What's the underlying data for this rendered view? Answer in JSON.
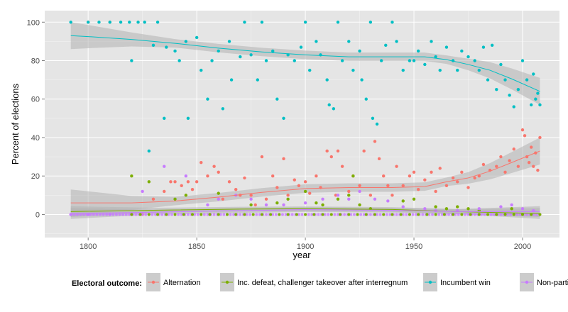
{
  "chart_data": {
    "type": "scatter",
    "title": "",
    "xlabel": "year",
    "ylabel": "Percent of elections",
    "xlim": [
      1780,
      2017
    ],
    "ylim": [
      -12,
      106
    ],
    "x_ticks": [
      1800,
      1850,
      1900,
      1950,
      2000
    ],
    "y_ticks": [
      0,
      20,
      40,
      60,
      80,
      100
    ],
    "grid": true,
    "legend_title": "Electoral outcome:",
    "legend_position": "bottom",
    "colors": {
      "panel": "#e5e5e5",
      "grid": "#ffffff",
      "band": "#b3b3b3",
      "Alternation": "#f8766d",
      "Inc. defeat, challenger takeover after interregnum": "#7cae00",
      "Incumbent win": "#00bfc4",
      "Non-partisan": "#c77cff"
    },
    "series": [
      {
        "name": "Alternation",
        "points": [
          [
            1800,
            100
          ],
          [
            1810,
            100
          ],
          [
            1820,
            0
          ],
          [
            1825,
            0
          ],
          [
            1830,
            8
          ],
          [
            1835,
            12
          ],
          [
            1838,
            17
          ],
          [
            1840,
            17
          ],
          [
            1843,
            15
          ],
          [
            1846,
            17
          ],
          [
            1848,
            13
          ],
          [
            1850,
            17
          ],
          [
            1852,
            27
          ],
          [
            1855,
            20
          ],
          [
            1858,
            25
          ],
          [
            1860,
            22
          ],
          [
            1862,
            8
          ],
          [
            1865,
            17
          ],
          [
            1868,
            13
          ],
          [
            1870,
            10
          ],
          [
            1872,
            19
          ],
          [
            1875,
            10
          ],
          [
            1877,
            5
          ],
          [
            1880,
            30
          ],
          [
            1882,
            8
          ],
          [
            1885,
            20
          ],
          [
            1887,
            14
          ],
          [
            1890,
            29
          ],
          [
            1892,
            10
          ],
          [
            1895,
            18
          ],
          [
            1897,
            15
          ],
          [
            1900,
            17
          ],
          [
            1902,
            11
          ],
          [
            1905,
            20
          ],
          [
            1907,
            14
          ],
          [
            1910,
            33
          ],
          [
            1912,
            30
          ],
          [
            1914,
            10
          ],
          [
            1915,
            33
          ],
          [
            1917,
            25
          ],
          [
            1920,
            12
          ],
          [
            1922,
            20
          ],
          [
            1925,
            15
          ],
          [
            1927,
            33
          ],
          [
            1930,
            10
          ],
          [
            1932,
            38
          ],
          [
            1934,
            29
          ],
          [
            1936,
            20
          ],
          [
            1938,
            15
          ],
          [
            1940,
            10
          ],
          [
            1942,
            25
          ],
          [
            1945,
            15
          ],
          [
            1948,
            20
          ],
          [
            1950,
            22
          ],
          [
            1952,
            13
          ],
          [
            1955,
            18
          ],
          [
            1958,
            22
          ],
          [
            1960,
            12
          ],
          [
            1962,
            24
          ],
          [
            1965,
            15
          ],
          [
            1968,
            19
          ],
          [
            1970,
            17
          ],
          [
            1972,
            22
          ],
          [
            1975,
            14
          ],
          [
            1978,
            19
          ],
          [
            1980,
            20
          ],
          [
            1982,
            26
          ],
          [
            1985,
            23
          ],
          [
            1988,
            25
          ],
          [
            1990,
            30
          ],
          [
            1992,
            22
          ],
          [
            1994,
            28
          ],
          [
            1996,
            34
          ],
          [
            1998,
            25
          ],
          [
            2000,
            44
          ],
          [
            2001,
            41
          ],
          [
            2002,
            30
          ],
          [
            2003,
            27
          ],
          [
            2004,
            35
          ],
          [
            2005,
            25
          ],
          [
            2006,
            32
          ],
          [
            2007,
            23
          ],
          [
            2008,
            40
          ]
        ],
        "trend": [
          [
            1792,
            6
          ],
          [
            1800,
            6
          ],
          [
            1820,
            6
          ],
          [
            1840,
            7
          ],
          [
            1860,
            9
          ],
          [
            1880,
            11.5
          ],
          [
            1900,
            13.5
          ],
          [
            1920,
            14
          ],
          [
            1940,
            14
          ],
          [
            1955,
            14.5
          ],
          [
            1965,
            17
          ],
          [
            1975,
            19
          ],
          [
            1985,
            22.5
          ],
          [
            1995,
            27
          ],
          [
            2008,
            33
          ]
        ]
      },
      {
        "name": "Inc. defeat, challenger takeover after interregnum",
        "points": [
          [
            1820,
            20
          ],
          [
            1828,
            17
          ],
          [
            1840,
            8
          ],
          [
            1845,
            10
          ],
          [
            1860,
            11
          ],
          [
            1875,
            5
          ],
          [
            1887,
            6
          ],
          [
            1892,
            8
          ],
          [
            1900,
            12
          ],
          [
            1905,
            6
          ],
          [
            1908,
            5
          ],
          [
            1915,
            8
          ],
          [
            1920,
            10
          ],
          [
            1922,
            20
          ],
          [
            1925,
            5
          ],
          [
            1930,
            3
          ],
          [
            1945,
            7
          ],
          [
            1950,
            8
          ],
          [
            1960,
            4
          ],
          [
            1965,
            3
          ],
          [
            1970,
            4
          ],
          [
            1975,
            3
          ],
          [
            1980,
            2
          ],
          [
            1995,
            3
          ]
        ],
        "trend": [
          [
            1792,
            1.5
          ],
          [
            1830,
            2.2
          ],
          [
            1870,
            2.8
          ],
          [
            1900,
            3
          ],
          [
            1940,
            2.6
          ],
          [
            1970,
            1.5
          ],
          [
            2008,
            0.5
          ]
        ]
      },
      {
        "name": "Incumbent win",
        "points": [
          [
            1792,
            100
          ],
          [
            1800,
            100
          ],
          [
            1805,
            100
          ],
          [
            1810,
            100
          ],
          [
            1815,
            100
          ],
          [
            1819,
            100
          ],
          [
            1820,
            80
          ],
          [
            1823,
            100
          ],
          [
            1826,
            100
          ],
          [
            1828,
            33
          ],
          [
            1830,
            88
          ],
          [
            1832,
            100
          ],
          [
            1835,
            50
          ],
          [
            1836,
            87
          ],
          [
            1840,
            85
          ],
          [
            1842,
            80
          ],
          [
            1845,
            90
          ],
          [
            1846,
            50
          ],
          [
            1850,
            92
          ],
          [
            1852,
            75
          ],
          [
            1855,
            60
          ],
          [
            1857,
            80
          ],
          [
            1860,
            85
          ],
          [
            1862,
            55
          ],
          [
            1865,
            90
          ],
          [
            1866,
            70
          ],
          [
            1870,
            82
          ],
          [
            1872,
            100
          ],
          [
            1875,
            83
          ],
          [
            1878,
            70
          ],
          [
            1880,
            100
          ],
          [
            1882,
            80
          ],
          [
            1885,
            85
          ],
          [
            1887,
            60
          ],
          [
            1890,
            50
          ],
          [
            1892,
            83
          ],
          [
            1895,
            80
          ],
          [
            1898,
            87
          ],
          [
            1900,
            100
          ],
          [
            1902,
            75
          ],
          [
            1905,
            90
          ],
          [
            1907,
            83
          ],
          [
            1910,
            70
          ],
          [
            1911,
            57
          ],
          [
            1913,
            55
          ],
          [
            1915,
            100
          ],
          [
            1917,
            80
          ],
          [
            1920,
            90
          ],
          [
            1922,
            75
          ],
          [
            1925,
            85
          ],
          [
            1926,
            70
          ],
          [
            1928,
            60
          ],
          [
            1930,
            100
          ],
          [
            1931,
            50
          ],
          [
            1933,
            47
          ],
          [
            1935,
            80
          ],
          [
            1937,
            88
          ],
          [
            1940,
            100
          ],
          [
            1942,
            90
          ],
          [
            1945,
            75
          ],
          [
            1948,
            80
          ],
          [
            1950,
            80
          ],
          [
            1952,
            85
          ],
          [
            1955,
            78
          ],
          [
            1958,
            90
          ],
          [
            1960,
            82
          ],
          [
            1962,
            75
          ],
          [
            1965,
            87
          ],
          [
            1968,
            80
          ],
          [
            1970,
            75
          ],
          [
            1972,
            85
          ],
          [
            1975,
            82
          ],
          [
            1978,
            80
          ],
          [
            1980,
            75
          ],
          [
            1982,
            87
          ],
          [
            1984,
            70
          ],
          [
            1986,
            88
          ],
          [
            1988,
            65
          ],
          [
            1990,
            78
          ],
          [
            1992,
            70
          ],
          [
            1994,
            62
          ],
          [
            1996,
            56
          ],
          [
            1998,
            65
          ],
          [
            2000,
            80
          ],
          [
            2002,
            70
          ],
          [
            2004,
            57
          ],
          [
            2005,
            73
          ],
          [
            2006,
            60
          ],
          [
            2007,
            63
          ],
          [
            2008,
            57
          ]
        ],
        "trend": [
          [
            1792,
            93
          ],
          [
            1800,
            92.5
          ],
          [
            1820,
            91
          ],
          [
            1840,
            89
          ],
          [
            1860,
            86.5
          ],
          [
            1880,
            84.5
          ],
          [
            1900,
            83
          ],
          [
            1920,
            82
          ],
          [
            1940,
            82
          ],
          [
            1955,
            82
          ],
          [
            1965,
            80.5
          ],
          [
            1975,
            78
          ],
          [
            1985,
            75
          ],
          [
            1995,
            70.5
          ],
          [
            2008,
            64
          ]
        ]
      },
      {
        "name": "Non-partisan",
        "points": [
          [
            1792,
            0
          ],
          [
            1800,
            0
          ],
          [
            1810,
            0
          ],
          [
            1820,
            0
          ],
          [
            1825,
            12
          ],
          [
            1835,
            25
          ],
          [
            1845,
            20
          ],
          [
            1855,
            5
          ],
          [
            1860,
            8
          ],
          [
            1868,
            10
          ],
          [
            1875,
            8
          ],
          [
            1882,
            5
          ],
          [
            1890,
            5
          ],
          [
            1900,
            6
          ],
          [
            1908,
            8
          ],
          [
            1915,
            10
          ],
          [
            1920,
            8
          ],
          [
            1925,
            12
          ],
          [
            1932,
            8
          ],
          [
            1938,
            7
          ],
          [
            1945,
            4
          ],
          [
            1955,
            3
          ],
          [
            1960,
            2
          ],
          [
            1970,
            2
          ],
          [
            1980,
            3
          ],
          [
            1990,
            4
          ],
          [
            1995,
            5
          ],
          [
            2000,
            3
          ],
          [
            2005,
            2
          ]
        ],
        "trend": [
          [
            1792,
            0.5
          ],
          [
            1830,
            1.2
          ],
          [
            1870,
            2
          ],
          [
            1900,
            2.5
          ],
          [
            1940,
            2.2
          ],
          [
            1970,
            1.5
          ],
          [
            2008,
            1.5
          ]
        ]
      }
    ]
  }
}
